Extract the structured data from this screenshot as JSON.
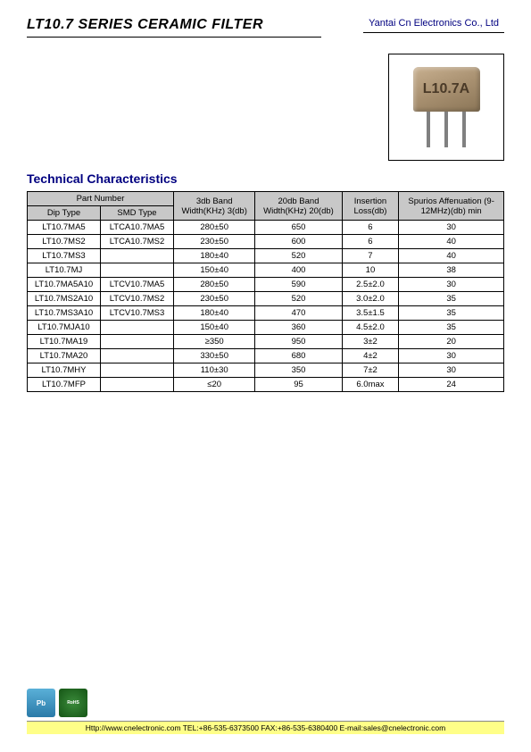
{
  "header": {
    "title": "LT10.7 SERIES CERAMIC FILTER",
    "company": "Yantai Cn Electronics Co., Ltd"
  },
  "product": {
    "marking": "L10.7A"
  },
  "section": {
    "title": "Technical Characteristics"
  },
  "table": {
    "headers": {
      "part_number": "Part Number",
      "dip_type": "Dip Type",
      "smd_type": "SMD Type",
      "band_3db": "3db Band Width(KHz) 3(db)",
      "band_20db": "20db Band Width(KHz) 20(db)",
      "insertion": "Insertion Loss(db)",
      "spurious": "Spurios Affenuation (9-12MHz)(db) min"
    },
    "rows": [
      {
        "dip": "LT10.7MA5",
        "smd": "LTCA10.7MA5",
        "b3": "280±50",
        "b20": "650",
        "ins": "6",
        "sp": "30"
      },
      {
        "dip": "LT10.7MS2",
        "smd": "LTCA10.7MS2",
        "b3": "230±50",
        "b20": "600",
        "ins": "6",
        "sp": "40"
      },
      {
        "dip": "LT10.7MS3",
        "smd": "",
        "b3": "180±40",
        "b20": "520",
        "ins": "7",
        "sp": "40"
      },
      {
        "dip": "LT10.7MJ",
        "smd": "",
        "b3": "150±40",
        "b20": "400",
        "ins": "10",
        "sp": "38"
      },
      {
        "dip": "LT10.7MA5A10",
        "smd": "LTCV10.7MA5",
        "b3": "280±50",
        "b20": "590",
        "ins": "2.5±2.0",
        "sp": "30"
      },
      {
        "dip": "LT10.7MS2A10",
        "smd": "LTCV10.7MS2",
        "b3": "230±50",
        "b20": "520",
        "ins": "3.0±2.0",
        "sp": "35"
      },
      {
        "dip": "LT10.7MS3A10",
        "smd": "LTCV10.7MS3",
        "b3": "180±40",
        "b20": "470",
        "ins": "3.5±1.5",
        "sp": "35"
      },
      {
        "dip": "LT10.7MJA10",
        "smd": "",
        "b3": "150±40",
        "b20": "360",
        "ins": "4.5±2.0",
        "sp": "35"
      },
      {
        "dip": "LT10.7MA19",
        "smd": "",
        "b3": "≥350",
        "b20": "950",
        "ins": "3±2",
        "sp": "20"
      },
      {
        "dip": "LT10.7MA20",
        "smd": "",
        "b3": "330±50",
        "b20": "680",
        "ins": "4±2",
        "sp": "30"
      },
      {
        "dip": "LT10.7MHY",
        "smd": "",
        "b3": "110±30",
        "b20": "350",
        "ins": "7±2",
        "sp": "30"
      },
      {
        "dip": "LT10.7MFP",
        "smd": "",
        "b3": "≤20",
        "b20": "95",
        "ins": "6.0max",
        "sp": "24"
      }
    ]
  },
  "footer": {
    "pb_label": "Pb",
    "rohs_label": "RoHS",
    "contact": "Http://www.cnelectronic.com   TEL:+86-535-6373500  FAX:+86-535-6380400  E-mail:sales@cnelectronic.com"
  },
  "style": {
    "header_bg": "#c8c8c8",
    "title_color": "#000080",
    "footer_bg": "#ffff88"
  }
}
